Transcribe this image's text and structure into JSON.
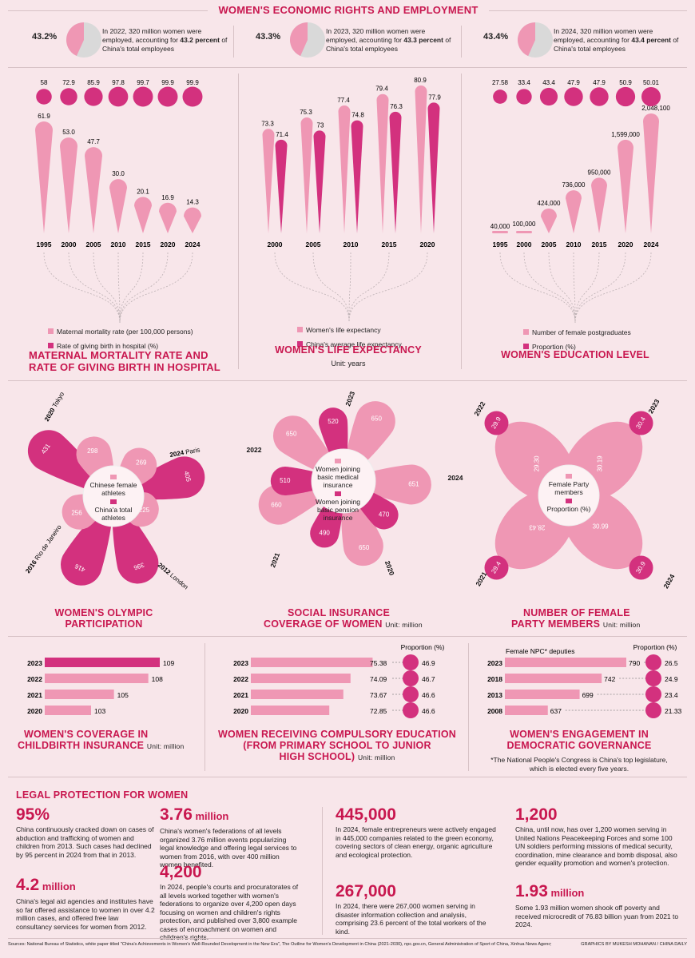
{
  "header": {
    "title": "WOMEN'S ECONOMIC RIGHTS AND EMPLOYMENT"
  },
  "employment": [
    {
      "pct_label": "43.2%",
      "value": 43.2,
      "text_a": "In 2022, 320 million women were employed, accounting for ",
      "text_b": "43.2 percent",
      "text_c": " of China's total employees"
    },
    {
      "pct_label": "43.3%",
      "value": 43.3,
      "text_a": "In 2023, 320 million women were employed, accounting for ",
      "text_b": "43.3 percent",
      "text_c": " of China's total employees"
    },
    {
      "pct_label": "43.4%",
      "value": 43.4,
      "text_a": "In 2024, 320 million women were employed, accounting for ",
      "text_b": "43.4 percent",
      "text_c": " of China's total employees"
    }
  ],
  "maternal": {
    "title_l1": "MATERNAL MORTALITY RATE AND",
    "title_l2": "RATE OF GIVING BIRTH IN HOSPITAL",
    "legend_a": "Maternal mortality rate (per 100,000 persons)",
    "legend_b": "Rate of giving birth in hospital (%)"
  },
  "life": {
    "title": "WOMEN'S LIFE EXPECTANCY",
    "unit": "Unit: years",
    "legend_a": "Women's life expectancy",
    "legend_b": "China's average life expectancy"
  },
  "education": {
    "title": "WOMEN'S EDUCATION LEVEL",
    "legend_a": "Number of female postgraduates",
    "legend_b": "Proportion (%)"
  },
  "olympic": {
    "title_l1": "WOMEN'S OLYMPIC",
    "title_l2": "PARTICIPATION",
    "center_a": "Chinese female athletes",
    "center_b": "China'a total athletes"
  },
  "insurance": {
    "title_l1": "SOCIAL INSURANCE",
    "title_l2": "COVERAGE OF WOMEN",
    "unit": "Unit: million",
    "center_a": "Women joining basic medical insurance",
    "center_b": "Women joining basic pension insurance"
  },
  "party": {
    "title_l1": "NUMBER OF FEMALE",
    "title_l2": "PARTY MEMBERS",
    "unit": "Unit: million",
    "center_a": "Female Party members",
    "center_b": "Proportion (%)"
  },
  "childbirth": {
    "title_l1": "WOMEN'S COVERAGE IN",
    "title_l2": "CHILDBIRTH INSURANCE",
    "unit": "Unit: million"
  },
  "compulsory": {
    "title_l1": "WOMEN RECEIVING COMPULSORY EDUCATION",
    "title_l2": "(FROM PRIMARY SCHOOL TO JUNIOR",
    "title_l3": "HIGH SCHOOL)",
    "unit": "Unit: million",
    "prop_label": "Proportion (%)"
  },
  "governance": {
    "title_l1": "WOMEN'S ENGAGEMENT IN",
    "title_l2": "DEMOCRATIC GOVERNANCE",
    "note_l1": "*The National People's Congress is China's top legislature,",
    "note_l2": "which is elected every five years.",
    "deputies_label": "Female NPC* deputies",
    "prop_label": "Proportion (%)"
  },
  "legal": {
    "title": "LEGAL PROTECTION FOR WOMEN",
    "items": [
      {
        "big": "95%",
        "unit": "",
        "text": "China continuously cracked down on cases of abduction and trafficking of women and children from 2013. Such cases had declined by 95 percent in 2024 from that in 2013."
      },
      {
        "big": "4.2",
        "unit": "million",
        "text": "China's legal aid agencies and institutes have so far offered assistance to women in over 4.2 million cases, and offered free law consultancy services for women from 2012."
      },
      {
        "big": "3.76",
        "unit": "million",
        "text": "China's women's federations of all levels organized 3.76 million events popularizing legal knowledge and offering legal services to women from 2016, with over 400 million women benefited."
      },
      {
        "big": "4,200",
        "unit": "",
        "text": "In 2024, people's courts and procuratorates of all levels worked together with women's federations to organize over 4,200 open days focusing on women and children's rights protection, and published over 3,800 example cases of encroachment on women and children's rights."
      },
      {
        "big": "445,000",
        "unit": "",
        "text": "In 2024, female entrepreneurs were actively engaged in 445,000 companies related to the green economy, covering sectors of clean energy, organic agriculture and ecological protection."
      },
      {
        "big": "267,000",
        "unit": "",
        "text": "In 2024, there were 267,000 women serving in disaster information collection and analysis, comprising 23.6 percent of the total workers of the kind."
      },
      {
        "big": "1,200",
        "unit": "",
        "text": "China, until now, has over 1,200 women serving in United Nations Peacekeeping Forces and some 100 UN soldiers performing missions of medical security, coordination, mine clearance and bomb disposal, also gender equality promotion and women's protection."
      },
      {
        "big": "1.93",
        "unit": "million",
        "text": "Some 1.93 million women shook off poverty and received microcredit of 76.83 billion yuan from 2021 to 2024."
      }
    ]
  },
  "footer": {
    "sources": "Sources: National Bureau of Statistics, white paper titled \"China's Achievements in Women's Well-Rounded Development in the New Era\", The Outline for Women's Development in China (2021-2030), npc.gov.cn, General Administration of Sport of China, Xinhua News Agency",
    "credit": "GRAPHICS BY MUKESH MOHANAN / CHINA DAILY"
  },
  "colors": {
    "light": "#ef97b4",
    "dark": "#d3317e",
    "title": "#c8174f",
    "bg": "#f8e6ea"
  },
  "chart_data": [
    {
      "type": "bar",
      "title": "MATERNAL MORTALITY RATE AND RATE OF GIVING BIRTH IN HOSPITAL",
      "categories": [
        "1995",
        "2000",
        "2005",
        "2010",
        "2015",
        "2020",
        "2024"
      ],
      "series": [
        {
          "name": "Maternal mortality rate (per 100,000 persons)",
          "values": [
            61.9,
            53.0,
            47.7,
            30.0,
            20.1,
            16.9,
            14.3
          ],
          "labels": [
            "61.9",
            "53.0",
            "47.7",
            "30.0",
            "20.1",
            "16.9",
            "14.3"
          ]
        },
        {
          "name": "Rate of giving birth in hospital (%)",
          "values": [
            58,
            72.9,
            85.9,
            97.8,
            99.7,
            99.9,
            99.9
          ],
          "labels": [
            "58",
            "72.9",
            "85.9",
            "97.8",
            "99.7",
            "99.9",
            "99.9"
          ]
        }
      ]
    },
    {
      "type": "bar",
      "title": "WOMEN'S LIFE EXPECTANCY",
      "categories": [
        "2000",
        "2005",
        "2010",
        "2015",
        "2020"
      ],
      "series": [
        {
          "name": "Women's life expectancy",
          "values": [
            73.3,
            75.3,
            77.4,
            79.4,
            80.9
          ]
        },
        {
          "name": "China's average life expectancy",
          "values": [
            71.4,
            73,
            74.8,
            76.3,
            77.9
          ]
        }
      ]
    },
    {
      "type": "bar",
      "title": "WOMEN'S EDUCATION LEVEL",
      "categories": [
        "1995",
        "2000",
        "2005",
        "2010",
        "2015",
        "2020",
        "2024"
      ],
      "series": [
        {
          "name": "Number of female postgraduates",
          "values": [
            40000,
            100000,
            424000,
            736000,
            950000,
            1599000,
            2048100
          ],
          "labels": [
            "40,000",
            "100,000",
            "424,000",
            "736,000",
            "950,000",
            "1,599,000",
            "2,048,100"
          ]
        },
        {
          "name": "Proportion (%)",
          "values": [
            27.58,
            33.4,
            43.4,
            47.9,
            47.9,
            50.9,
            50.01
          ],
          "labels": [
            "27.58",
            "33.4",
            "43.4",
            "47.9",
            "47.9",
            "50.9",
            "50.01"
          ]
        }
      ]
    },
    {
      "type": "pie",
      "title": "WOMEN'S OLYMPIC PARTICIPATION",
      "games": [
        {
          "year": "2020",
          "city": "Tokyo",
          "female": 298,
          "total": 431
        },
        {
          "year": "2024",
          "city": "Paris",
          "female": 269,
          "total": 405
        },
        {
          "year": "2012",
          "city": "London",
          "female": 225,
          "total": 396
        },
        {
          "year": "2016",
          "city": "Rio de Janeiro",
          "female": 256,
          "total": 416
        }
      ]
    },
    {
      "type": "pie",
      "title": "SOCIAL INSURANCE COVERAGE OF WOMEN",
      "years": [
        {
          "year": "2023",
          "medical": 650,
          "pension": 520
        },
        {
          "year": "2024",
          "medical": 651,
          "pension": null
        },
        {
          "year": "2020",
          "medical": 650,
          "pension": 470
        },
        {
          "year": "2021",
          "medical": 660,
          "pension": 490
        },
        {
          "year": "2022",
          "medical": 650,
          "pension": 510
        }
      ]
    },
    {
      "type": "pie",
      "title": "NUMBER OF FEMALE PARTY MEMBERS",
      "years": [
        {
          "year": "2022",
          "members": 29.3,
          "members_label": "29.30",
          "proportion": 29.9
        },
        {
          "year": "2023",
          "members": 30.19,
          "members_label": "30.19",
          "proportion": 30.4
        },
        {
          "year": "2021",
          "members": 28.43,
          "members_label": "28.43",
          "proportion": 29.4
        },
        {
          "year": "2024",
          "members": 30.99,
          "members_label": "30.99",
          "proportion": 30.9
        }
      ]
    },
    {
      "type": "bar",
      "title": "WOMEN'S COVERAGE IN CHILDBIRTH INSURANCE",
      "categories": [
        "2023",
        "2022",
        "2021",
        "2020"
      ],
      "values": [
        109,
        108,
        105,
        103
      ]
    },
    {
      "type": "bar",
      "title": "WOMEN RECEIVING COMPULSORY EDUCATION",
      "categories": [
        "2023",
        "2022",
        "2021",
        "2020"
      ],
      "values": [
        75.38,
        74.09,
        73.67,
        72.85
      ],
      "labels": [
        "75.38",
        "74.09",
        "73.67",
        "72.85"
      ],
      "proportion": [
        46.9,
        46.7,
        46.6,
        46.6
      ]
    },
    {
      "type": "bar",
      "title": "WOMEN'S ENGAGEMENT IN DEMOCRATIC GOVERNANCE",
      "categories": [
        "2023",
        "2018",
        "2013",
        "2008"
      ],
      "values": [
        790,
        742,
        699,
        637
      ],
      "proportion": [
        26.5,
        24.9,
        23.4,
        21.33
      ],
      "proportion_labels": [
        "26.5",
        "24.9",
        "23.4",
        "21.33"
      ]
    }
  ]
}
